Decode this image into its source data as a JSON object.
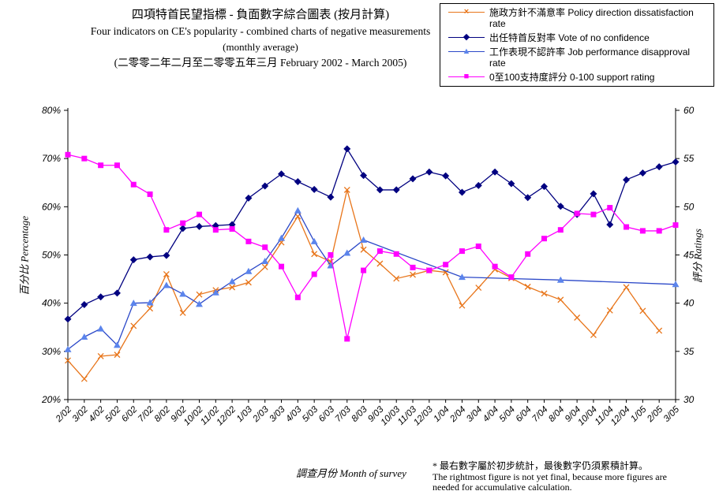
{
  "title": {
    "line1_zh": "四項特首民望指標 - 負面數字綜合圖表 (按月計算)",
    "line2_en": "Four indicators on CE's popularity - combined charts of negative measurements",
    "line3_en": "(monthly average)",
    "line4_range": "(二零零二年二月至二零零五年三月 February 2002 - March 2005)"
  },
  "axes": {
    "left_title": "百分比 Percentage",
    "right_title": "評分 Ratings",
    "x_title": "調查月份  Month of survey",
    "left_ticks": [
      "80%",
      "70%",
      "60%",
      "50%",
      "40%",
      "30%",
      "20%"
    ],
    "right_ticks": [
      "60",
      "55",
      "50",
      "45",
      "40",
      "35",
      "30"
    ]
  },
  "footnote": {
    "line1": "* 最右數字屬於初步統計，最後數字仍須累積計算。",
    "line2": "The rightmost figure is not yet final, because more figures are",
    "line3": "needed for accumulative calculation."
  },
  "chart_data": {
    "type": "line",
    "grid": false,
    "legend_position": "top-right",
    "x": [
      "2/02",
      "3/02",
      "4/02",
      "5/02",
      "6/02",
      "7/02",
      "8/02",
      "9/02",
      "10/02",
      "11/02",
      "12/02",
      "1/03",
      "2/03",
      "3/03",
      "4/03",
      "5/03",
      "6/03",
      "7/03",
      "8/03",
      "9/03",
      "10/03",
      "11/03",
      "12/03",
      "1/04",
      "2/04",
      "3/04",
      "4/04",
      "5/04",
      "6/04",
      "7/04",
      "8/04",
      "9/04",
      "10/04",
      "11/04",
      "12/04",
      "1/05",
      "2/05",
      "3/05"
    ],
    "left_axis": {
      "label": "百分比 Percentage",
      "min": 20,
      "max": 80,
      "unit": "%"
    },
    "right_axis": {
      "label": "評分 Ratings",
      "min": 30,
      "max": 60,
      "unit": "rating"
    },
    "series": [
      {
        "id": "policy-dissatisfaction",
        "name": "施政方針不滿意率 Policy direction dissatisfaction rate",
        "axis": "left",
        "color": "#E8751A",
        "marker": "x",
        "values": [
          28.1,
          24.3,
          29.0,
          29.3,
          35.3,
          38.9,
          46.0,
          38.0,
          41.8,
          42.7,
          43.3,
          44.3,
          47.5,
          52.6,
          58.0,
          50.2,
          48.6,
          63.5,
          51.1,
          48.2,
          45.1,
          45.9,
          46.8,
          46.4,
          39.5,
          43.2,
          47.0,
          45.2,
          43.4,
          42.0,
          40.7,
          37.0,
          33.4,
          38.5,
          43.3,
          38.4,
          34.3,
          null
        ]
      },
      {
        "id": "no-confidence",
        "name": "出任特首反對率 Vote of no confidence",
        "axis": "left",
        "color": "#000080",
        "marker": "diamond",
        "values": [
          36.7,
          39.7,
          41.3,
          42.1,
          49.0,
          49.6,
          49.9,
          55.5,
          55.9,
          56.1,
          56.3,
          61.8,
          64.3,
          66.8,
          65.2,
          63.6,
          62.0,
          72.0,
          66.5,
          63.5,
          63.5,
          65.8,
          67.2,
          66.4,
          63.0,
          64.4,
          67.2,
          64.8,
          61.9,
          64.2,
          60.1,
          58.4,
          62.7,
          56.3,
          65.6,
          67.0,
          68.3,
          69.3
        ]
      },
      {
        "id": "job-disapproval",
        "name": "工作表現不認許率 Job performance disapproval rate",
        "axis": "left",
        "color": "#2B48C8",
        "marker": "triangle",
        "marker_color": "#5B84EC",
        "values": [
          30.4,
          33.0,
          34.7,
          31.3,
          40.0,
          40.1,
          43.7,
          41.9,
          39.8,
          42.2,
          44.5,
          46.6,
          48.7,
          53.5,
          59.2,
          52.8,
          47.8,
          50.4,
          53.1,
          null,
          null,
          null,
          null,
          null,
          45.4,
          null,
          null,
          null,
          null,
          null,
          44.8,
          null,
          null,
          null,
          null,
          null,
          null,
          43.9
        ]
      },
      {
        "id": "support-rating",
        "name": "0至100支持度評分 0-100 support rating",
        "axis": "right",
        "color": "#FF00FF",
        "marker": "square",
        "values": [
          55.4,
          55.0,
          54.3,
          54.3,
          52.3,
          51.3,
          47.6,
          48.3,
          49.2,
          47.6,
          47.7,
          46.4,
          45.8,
          43.8,
          40.6,
          43.0,
          45.0,
          36.3,
          43.4,
          45.4,
          45.1,
          43.7,
          43.4,
          44.0,
          45.4,
          45.9,
          43.8,
          42.7,
          45.1,
          46.7,
          47.6,
          49.3,
          49.2,
          49.9,
          47.9,
          47.5,
          47.5,
          48.1
        ]
      }
    ]
  }
}
